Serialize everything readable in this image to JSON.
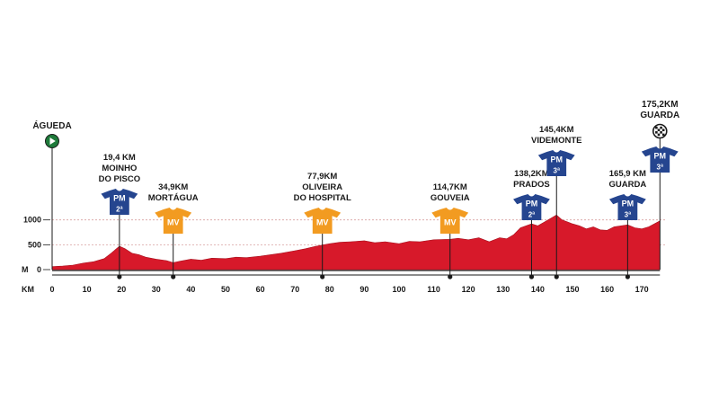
{
  "chart_data": {
    "type": "area",
    "title": "",
    "xlabel": "KM",
    "ylabel": "M",
    "xlim": [
      0,
      175.2
    ],
    "ylim": [
      0,
      1200
    ],
    "x_ticks": [
      0,
      10,
      20,
      30,
      40,
      50,
      60,
      70,
      80,
      90,
      100,
      110,
      120,
      130,
      140,
      150,
      160,
      170
    ],
    "x_tick_labels": [
      "0",
      "10",
      "20",
      "30",
      "40",
      "50",
      "60",
      "70",
      "80",
      "90",
      "100",
      "110",
      "120",
      "130",
      "140",
      "150",
      "160",
      "170"
    ],
    "y_ticks": [
      0,
      500,
      1000
    ],
    "y_tick_labels": [
      "0",
      "500",
      "1000"
    ],
    "axis_prefix_x": "KM",
    "axis_prefix_y": "M",
    "fill_color": "#d7192a",
    "profile": {
      "x": [
        0,
        3,
        6,
        9,
        12,
        15,
        17,
        19.4,
        21,
        23,
        25,
        27,
        30,
        33,
        34.9,
        37,
        40,
        43,
        46,
        50,
        53,
        56,
        60,
        63,
        66,
        70,
        73,
        76,
        80,
        83,
        86,
        90,
        93,
        96,
        100,
        103,
        106,
        110,
        114.7,
        117,
        120,
        123,
        126,
        129,
        131,
        133,
        135,
        138.2,
        140,
        142,
        145.4,
        147,
        150,
        152,
        154,
        156,
        158,
        160,
        162,
        165.9,
        168,
        170,
        172,
        175.2
      ],
      "y": [
        60,
        70,
        90,
        130,
        160,
        220,
        330,
        470,
        420,
        330,
        300,
        250,
        210,
        180,
        140,
        170,
        210,
        190,
        230,
        220,
        250,
        240,
        270,
        300,
        330,
        380,
        420,
        470,
        520,
        550,
        560,
        580,
        540,
        560,
        520,
        570,
        560,
        600,
        610,
        630,
        600,
        640,
        560,
        640,
        620,
        700,
        840,
        920,
        880,
        960,
        1100,
        1000,
        920,
        880,
        820,
        860,
        800,
        790,
        860,
        900,
        840,
        820,
        860,
        980
      ]
    },
    "start": {
      "name": "ÁGUEDA",
      "km": 0
    },
    "finish": {
      "name": "GUARDA",
      "km": 175.2,
      "km_label": "175,2KM"
    },
    "climbs": [
      {
        "km": 19.4,
        "km_label": "19,4 KM",
        "name_lines": [
          "MOINHO",
          "DO PISCO"
        ],
        "type": "PM",
        "category": "2ª"
      },
      {
        "km": 138.2,
        "km_label": "138,2KM",
        "name_lines": [
          "PRADOS"
        ],
        "type": "PM",
        "category": "2ª"
      },
      {
        "km": 145.4,
        "km_label": "145,4KM",
        "name_lines": [
          "VIDEMONTE"
        ],
        "type": "PM",
        "category": "3ª"
      },
      {
        "km": 165.9,
        "km_label": "165,9 KM",
        "name_lines": [
          "GUARDA"
        ],
        "type": "PM",
        "category": "3ª"
      }
    ],
    "finish_climb": {
      "type": "PM",
      "category": "3ª"
    },
    "sprints": [
      {
        "km": 34.9,
        "km_label": "34,9KM",
        "name_lines": [
          "MORTÁGUA"
        ],
        "type": "MV"
      },
      {
        "km": 77.9,
        "km_label": "77,9KM",
        "name_lines": [
          "OLIVEIRA",
          "DO HOSPITAL"
        ],
        "type": "MV"
      },
      {
        "km": 114.7,
        "km_label": "114,7KM",
        "name_lines": [
          "GOUVEIA"
        ],
        "type": "MV"
      }
    ],
    "colors": {
      "pm_jersey": "#25458f",
      "mv_jersey": "#f29b21",
      "start_icon": "#1e7a3a",
      "grid": "#d9a0a0"
    }
  }
}
